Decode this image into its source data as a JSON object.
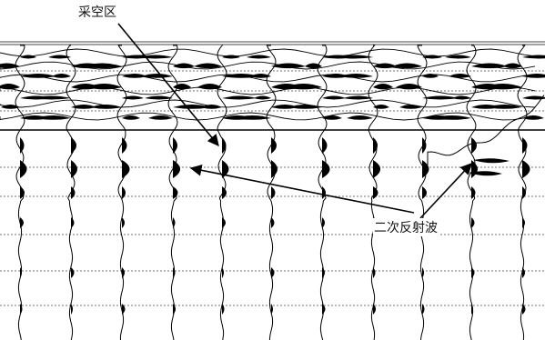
{
  "figure": {
    "trace_count": 11,
    "horizontal_gridline_count": 8,
    "annotations": {
      "goaf_label": "采空区",
      "secondary_reflection_label": "二次反射波"
    },
    "colors": {
      "background": "#ffffff",
      "ink": "#000000",
      "grid": "#444444"
    }
  }
}
